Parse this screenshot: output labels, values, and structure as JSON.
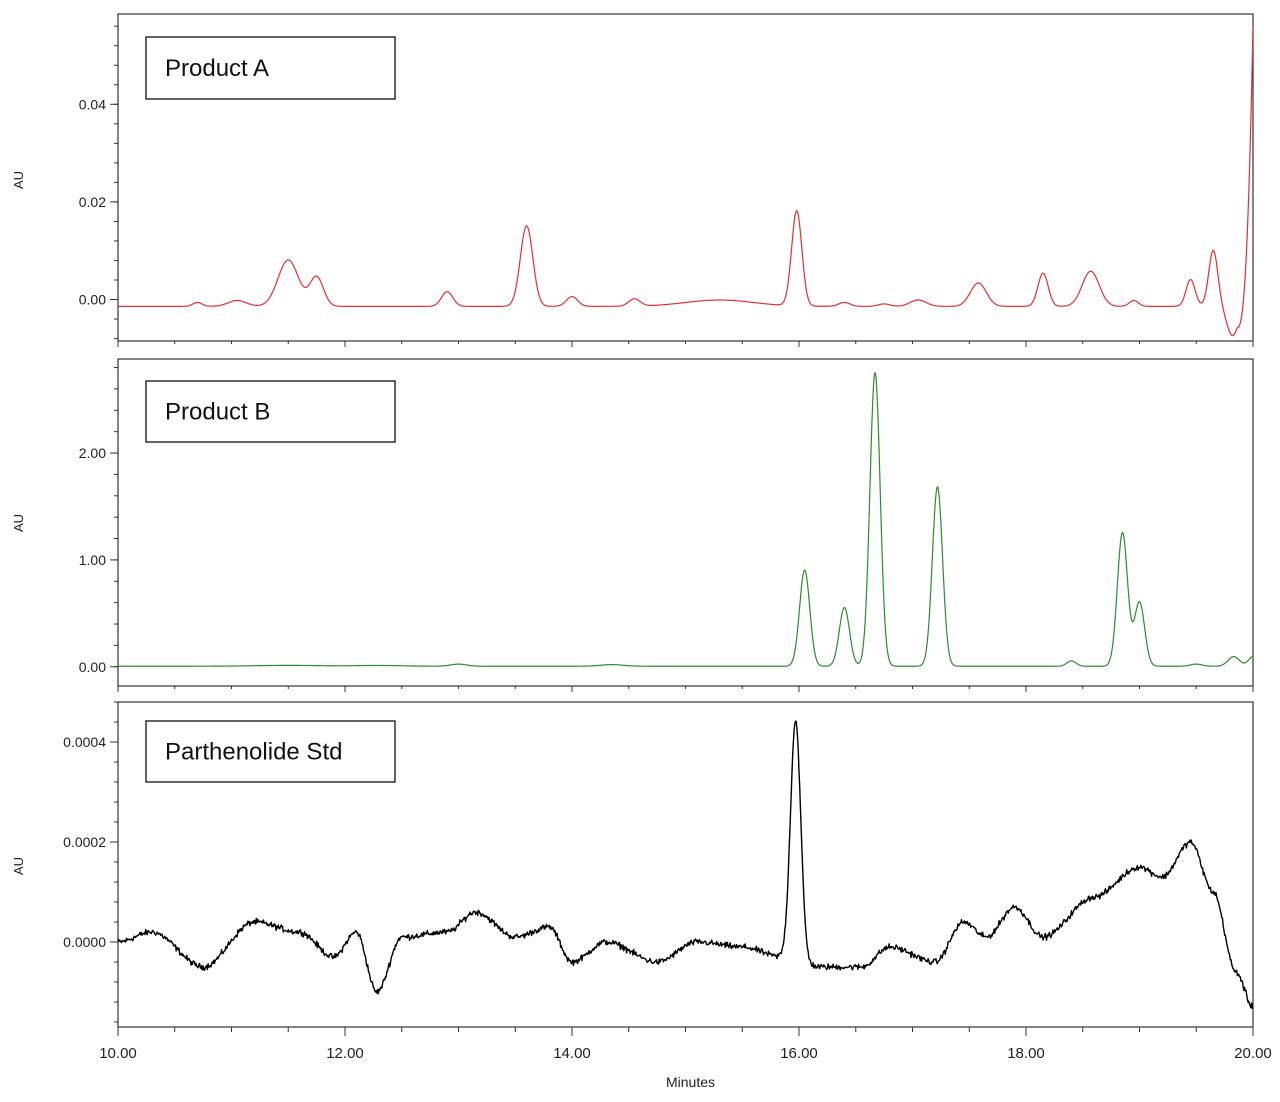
{
  "chart_data": [
    {
      "type": "line",
      "title": "Product A",
      "xlabel": "",
      "ylabel": "AU",
      "xlim": [
        10.0,
        20.0
      ],
      "ylim": [
        -0.0085,
        0.0585
      ],
      "yticks": [
        0.0,
        0.02,
        0.04
      ],
      "ytick_labels": [
        "0.00",
        "0.02",
        "0.04"
      ],
      "series": [
        {
          "name": "Product A",
          "color": "#e03030",
          "baseline": -0.0014,
          "edge_start": [
            19.86,
            -0.0055
          ],
          "edge_end": [
            20.0,
            0.056
          ],
          "peaks": [
            {
              "t": 10.7,
              "h": 0.0008,
              "w": 0.04
            },
            {
              "t": 11.05,
              "h": 0.0012,
              "w": 0.08
            },
            {
              "t": 11.5,
              "h": 0.0095,
              "w": 0.09
            },
            {
              "t": 11.75,
              "h": 0.006,
              "w": 0.06
            },
            {
              "t": 12.9,
              "h": 0.003,
              "w": 0.05
            },
            {
              "t": 13.6,
              "h": 0.0165,
              "w": 0.055
            },
            {
              "t": 14.0,
              "h": 0.002,
              "w": 0.05
            },
            {
              "t": 14.55,
              "h": 0.0015,
              "w": 0.05
            },
            {
              "t": 15.3,
              "h": 0.0013,
              "w": 0.3
            },
            {
              "t": 15.98,
              "h": 0.0195,
              "w": 0.045
            },
            {
              "t": 16.4,
              "h": 0.0008,
              "w": 0.05
            },
            {
              "t": 16.75,
              "h": 0.0005,
              "w": 0.05
            },
            {
              "t": 17.05,
              "h": 0.0013,
              "w": 0.07
            },
            {
              "t": 17.58,
              "h": 0.0048,
              "w": 0.07
            },
            {
              "t": 18.15,
              "h": 0.0068,
              "w": 0.045
            },
            {
              "t": 18.57,
              "h": 0.0072,
              "w": 0.075
            },
            {
              "t": 18.95,
              "h": 0.0012,
              "w": 0.04
            },
            {
              "t": 19.45,
              "h": 0.0055,
              "w": 0.04
            },
            {
              "t": 19.65,
              "h": 0.0115,
              "w": 0.04
            },
            {
              "t": 19.82,
              "h": -0.006,
              "w": 0.05
            }
          ]
        }
      ]
    },
    {
      "type": "line",
      "title": "Product B",
      "xlabel": "",
      "ylabel": "AU",
      "xlim": [
        10.0,
        20.0
      ],
      "ylim": [
        -0.18,
        2.88
      ],
      "yticks": [
        0.0,
        1.0,
        2.0
      ],
      "ytick_labels": [
        "0.00",
        "1.00",
        "2.00"
      ],
      "series": [
        {
          "name": "Product B",
          "color": "#2e8b2e",
          "baseline": 0.005,
          "peaks": [
            {
              "t": 11.5,
              "h": 0.008,
              "w": 0.3
            },
            {
              "t": 12.3,
              "h": 0.007,
              "w": 0.2
            },
            {
              "t": 13.0,
              "h": 0.02,
              "w": 0.07
            },
            {
              "t": 14.35,
              "h": 0.015,
              "w": 0.1
            },
            {
              "t": 16.05,
              "h": 0.9,
              "w": 0.045
            },
            {
              "t": 16.4,
              "h": 0.55,
              "w": 0.045
            },
            {
              "t": 16.67,
              "h": 2.75,
              "w": 0.045
            },
            {
              "t": 17.22,
              "h": 1.68,
              "w": 0.045
            },
            {
              "t": 18.4,
              "h": 0.05,
              "w": 0.04
            },
            {
              "t": 18.85,
              "h": 1.25,
              "w": 0.045
            },
            {
              "t": 19.0,
              "h": 0.6,
              "w": 0.045
            },
            {
              "t": 19.5,
              "h": 0.02,
              "w": 0.05
            },
            {
              "t": 19.83,
              "h": 0.09,
              "w": 0.05
            },
            {
              "t": 20.0,
              "h": 0.09,
              "w": 0.04
            }
          ]
        }
      ]
    },
    {
      "type": "line",
      "title": "Parthenolide Std",
      "xlabel": "Minutes",
      "ylabel": "AU",
      "xlim": [
        10.0,
        20.0
      ],
      "ylim": [
        -0.00017,
        0.00048
      ],
      "yticks": [
        0.0,
        0.0002,
        0.0004
      ],
      "ytick_labels": [
        "0.0000",
        "0.0002",
        "0.0004"
      ],
      "xticks": [
        10.0,
        12.0,
        14.0,
        16.0,
        18.0,
        20.0
      ],
      "xtick_labels": [
        "10.00",
        "12.00",
        "14.00",
        "16.00",
        "18.00",
        "20.00"
      ],
      "series": [
        {
          "name": "Parthenolide Std",
          "color": "#000000",
          "noise": 9e-06,
          "peaks": [
            {
              "t": 15.97,
              "h": 0.00048,
              "w": 0.045
            }
          ],
          "drift": [
            [
              10.0,
              0.0
            ],
            [
              10.3,
              2e-05
            ],
            [
              10.75,
              -5e-05
            ],
            [
              11.2,
              4e-05
            ],
            [
              11.6,
              2e-05
            ],
            [
              11.9,
              -3e-05
            ],
            [
              12.1,
              2e-05
            ],
            [
              12.28,
              -0.0001
            ],
            [
              12.5,
              1e-05
            ],
            [
              12.9,
              2e-05
            ],
            [
              13.15,
              6e-05
            ],
            [
              13.5,
              1e-05
            ],
            [
              13.8,
              3e-05
            ],
            [
              14.0,
              -4e-05
            ],
            [
              14.3,
              0.0
            ],
            [
              14.75,
              -4e-05
            ],
            [
              15.1,
              0.0
            ],
            [
              15.5,
              -1e-05
            ],
            [
              15.85,
              -3e-05
            ],
            [
              16.2,
              -5e-05
            ],
            [
              16.55,
              -5e-05
            ],
            [
              16.8,
              -1e-05
            ],
            [
              17.2,
              -4e-05
            ],
            [
              17.45,
              4e-05
            ],
            [
              17.65,
              1e-05
            ],
            [
              17.9,
              7e-05
            ],
            [
              18.15,
              1e-05
            ],
            [
              18.6,
              9e-05
            ],
            [
              19.0,
              0.00015
            ],
            [
              19.2,
              0.00013
            ],
            [
              19.45,
              0.0002
            ],
            [
              19.65,
              0.0001
            ],
            [
              19.85,
              -6e-05
            ],
            [
              20.0,
              -0.00013
            ]
          ]
        }
      ]
    }
  ]
}
